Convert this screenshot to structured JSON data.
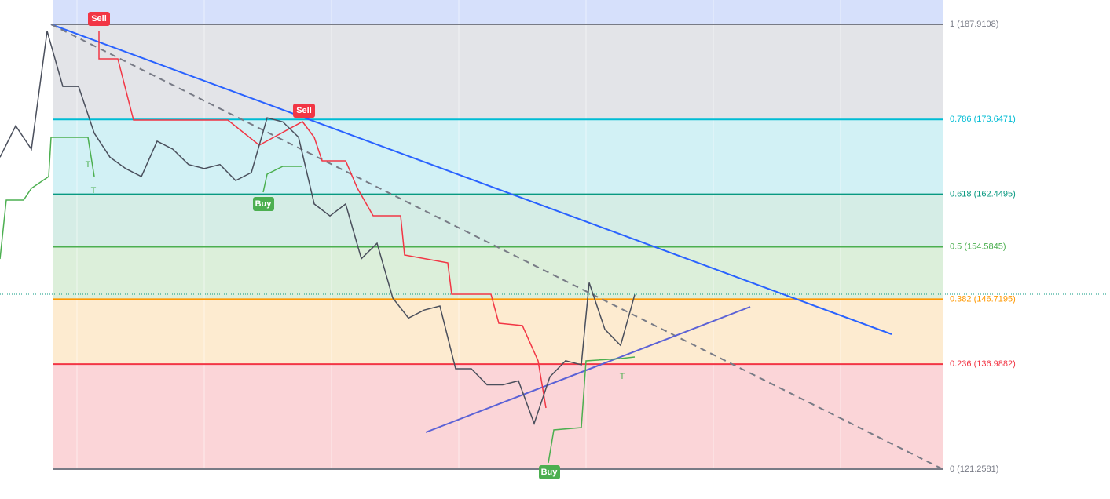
{
  "chart_data": {
    "type": "line",
    "levels": [
      {
        "value": 187.9108,
        "label": "1 (187.9108)",
        "color": "#787b86",
        "fill": "#e3e4e8"
      },
      {
        "value": 173.6471,
        "label": "0.786 (173.6471)",
        "color": "#00bcd4",
        "fill": "#d2f1f5"
      },
      {
        "value": 162.4495,
        "label": "0.618 (162.4495)",
        "color": "#089981",
        "fill": "#d5ede6"
      },
      {
        "value": 154.5845,
        "label": "0.5 (154.5845)",
        "color": "#4caf50",
        "fill": "#dcefda"
      },
      {
        "value": 146.7195,
        "label": "0.382 (146.7195)",
        "color": "#ff9800",
        "fill": "#fdebd0"
      },
      {
        "value": 136.9882,
        "label": "0.236 (136.9882)",
        "color": "#f23645",
        "fill": "#fbd5d8"
      },
      {
        "value": 121.2581,
        "label": "0 (121.2581)",
        "color": "#787b86",
        "fill": "#fbd5d8"
      }
    ],
    "top_fill": "#d6e0fb",
    "ylim": [
      116.79,
      191.55
    ],
    "xlim": [
      0,
      1200
    ],
    "series": [
      {
        "color": "#4a4f5c",
        "x": [
          0,
          20,
          40,
          60,
          80,
          100,
          120,
          140,
          160,
          180,
          200,
          220,
          240,
          260,
          280,
          300,
          320,
          340,
          360,
          380,
          400,
          420,
          440,
          460,
          480,
          500,
          520,
          540,
          560,
          580,
          600,
          620,
          640,
          660,
          680,
          700,
          720,
          740,
          750,
          770,
          790,
          808
        ],
        "values": [
          168.0,
          172.7,
          169.2,
          186.9,
          178.6,
          178.6,
          171.6,
          168.0,
          166.3,
          165.1,
          170.4,
          169.2,
          166.9,
          166.3,
          166.9,
          164.5,
          165.7,
          173.9,
          173.3,
          171.0,
          161.0,
          159.2,
          161.0,
          152.8,
          155.1,
          146.9,
          143.9,
          145.1,
          145.7,
          136.3,
          136.3,
          133.9,
          133.9,
          134.5,
          128.1,
          135.1,
          137.5,
          136.9,
          149.2,
          142.2,
          139.8,
          147.4
        ]
      }
    ],
    "signals": [
      "Sell",
      "Sell",
      "Buy",
      "Buy",
      "T",
      "T",
      "T"
    ]
  }
}
